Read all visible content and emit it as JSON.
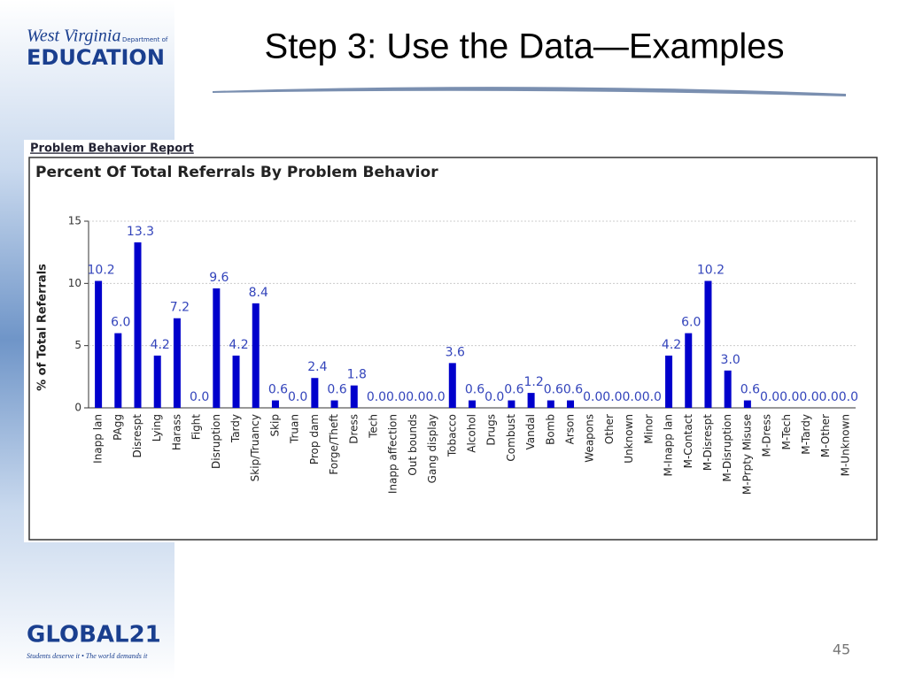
{
  "slide": {
    "title": "Step 3:  Use the Data—Examples",
    "page_number": "45",
    "logo_top_line": "West Virginia",
    "logo_top_small": "Department of",
    "logo_top_main": "EDUCATION",
    "logo_bottom_main": "GLOBAL21",
    "logo_bottom_tagline": "Students deserve it • The world demands it",
    "report_header": "Problem Behavior Report"
  },
  "chart_data": {
    "type": "bar",
    "title": "Percent Of Total Referrals By Problem Behavior",
    "y_label": "% of Total Referrals",
    "color": "#0000cc",
    "grid": true,
    "categories": [
      "Inapp lan",
      "PAgg",
      "Disrespt",
      "Lying",
      "Harass",
      "Fight",
      "Disruption",
      "Tardy",
      "Skip/Truancy",
      "Skip",
      "Truan",
      "Prop dam",
      "Forge/Theft",
      "Dress",
      "Tech",
      "Inapp affection",
      "Out bounds",
      "Gang display",
      "Tobacco",
      "Alcohol",
      "Drugs",
      "Combust",
      "Vandal",
      "Bomb",
      "Arson",
      "Weapons",
      "Other",
      "Unknown",
      "Minor",
      "M-Inapp lan",
      "M-Contact",
      "M-Disrespt",
      "M-Disruption",
      "M-Prpty Misuse",
      "M-Dress",
      "M-Tech",
      "M-Tardy",
      "M-Other",
      "M-Unknown"
    ],
    "values": [
      10.2,
      6.0,
      13.3,
      4.2,
      7.2,
      0.0,
      9.6,
      4.2,
      8.4,
      0.6,
      0.0,
      2.4,
      0.6,
      1.8,
      0.0,
      0.0,
      0.0,
      0.0,
      3.6,
      0.6,
      0.0,
      0.6,
      1.2,
      0.6,
      0.6,
      0.0,
      0.0,
      0.0,
      0.0,
      4.2,
      6.0,
      10.2,
      3.0,
      0.6,
      0.0,
      0.0,
      0.0,
      0.0,
      0.0
    ],
    "value_labels": [
      "10.2",
      "6.0",
      "13.3",
      "4.2",
      "7.2",
      "0.0",
      "9.6",
      "4.2",
      "8.4",
      "0.6",
      "0.0",
      "2.4",
      "0.6",
      "1.8",
      "0.0",
      "0.0",
      "0.0",
      "0.0",
      "3.6",
      "0.6",
      "0.0",
      "0.6",
      "1.2",
      "0.6",
      "0.6",
      "0.0",
      "0.0",
      "0.0",
      "0.0",
      "4.2",
      "6.0",
      "10.2",
      "3.0",
      "0.6",
      "0.0",
      "0.0",
      "0.0",
      "0.0",
      "0.0"
    ],
    "ylim": [
      0,
      15
    ],
    "yticks": [
      0,
      5,
      10,
      15
    ]
  }
}
